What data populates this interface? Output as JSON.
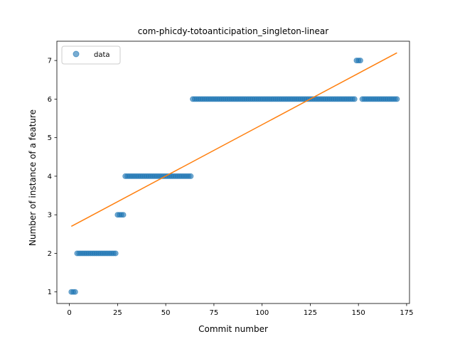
{
  "chart_data": {
    "type": "scatter",
    "title": "com-phicdy-totoanticipation_singleton-linear",
    "xlabel": "Commit number",
    "ylabel": "Number of instance of a feature",
    "xlim": [
      -6.5,
      176.5
    ],
    "ylim": [
      0.7,
      7.5
    ],
    "xticks": [
      0,
      25,
      50,
      75,
      100,
      125,
      150,
      175
    ],
    "yticks": [
      1,
      2,
      3,
      4,
      5,
      6,
      7
    ],
    "legend": {
      "position": "top-left",
      "entries": [
        "data"
      ]
    },
    "grid": false,
    "series": [
      {
        "name": "data",
        "kind": "scatter",
        "color": "#1f77b4",
        "runs": [
          {
            "x_from": 1,
            "x_to": 3,
            "y": 1
          },
          {
            "x_from": 4,
            "x_to": 24,
            "y": 2
          },
          {
            "x_from": 25,
            "x_to": 28,
            "y": 3
          },
          {
            "x_from": 29,
            "x_to": 63,
            "y": 4
          },
          {
            "x_from": 64,
            "x_to": 148,
            "y": 6
          },
          {
            "x_from": 149,
            "x_to": 151,
            "y": 7
          },
          {
            "x_from": 152,
            "x_to": 170,
            "y": 6
          }
        ]
      },
      {
        "kind": "line",
        "color": "#ff7f0e",
        "x": [
          1,
          170
        ],
        "y": [
          2.7,
          7.2
        ]
      }
    ]
  }
}
